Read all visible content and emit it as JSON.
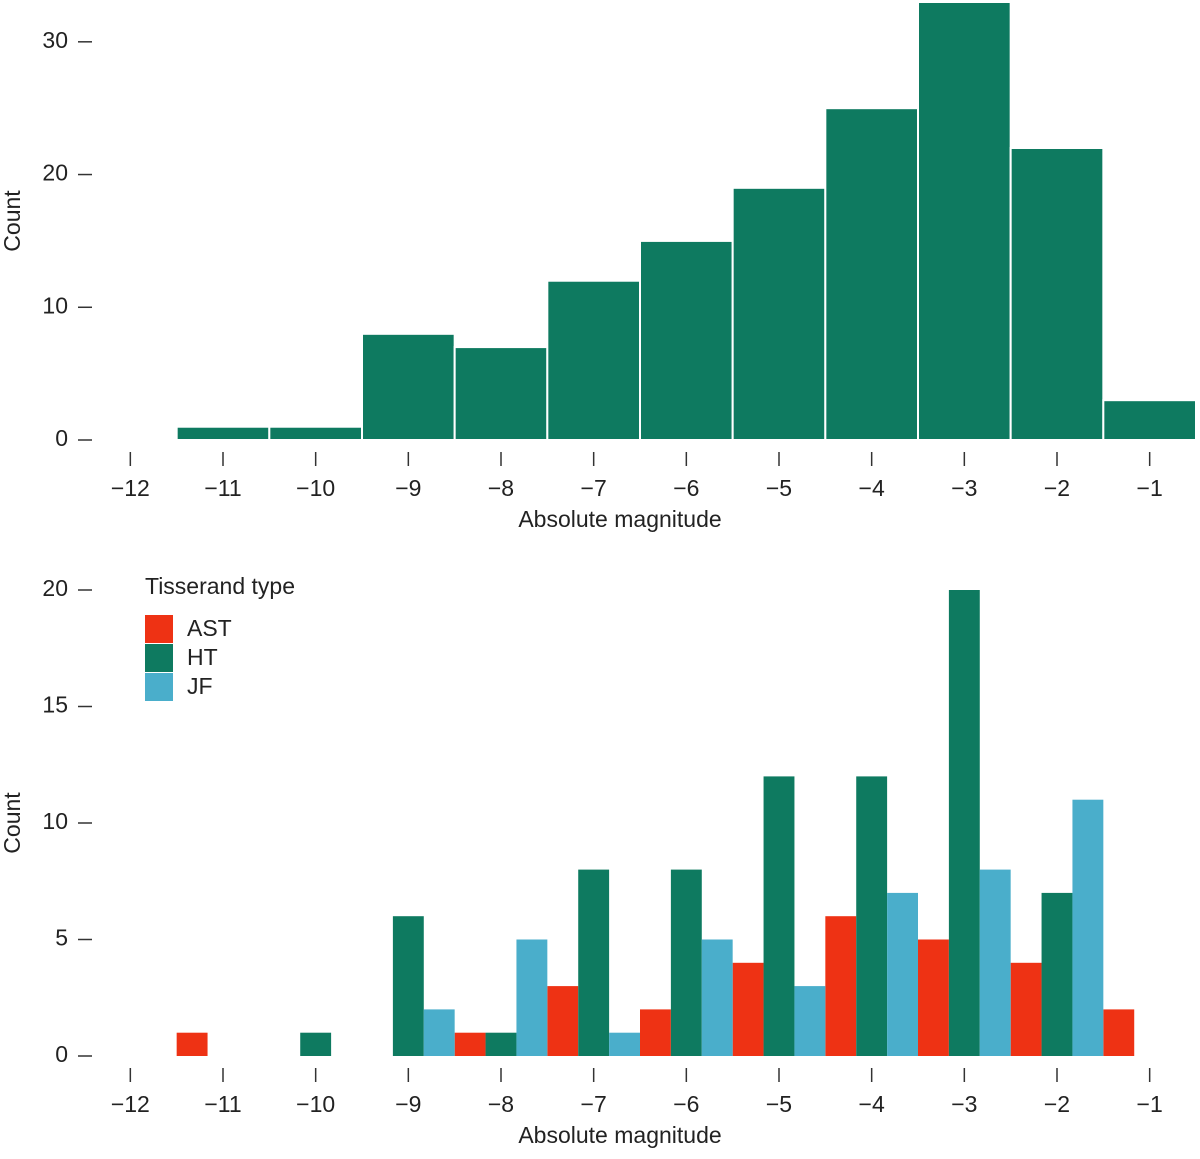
{
  "chart_data": [
    {
      "type": "histogram",
      "x_label": "Absolute magnitude",
      "y_label": "Count",
      "bins": [
        -11.5,
        -10.5,
        -9.5,
        -8.5,
        -7.5,
        -6.5,
        -5.5,
        -4.5,
        -3.5,
        -2.5,
        -1.5,
        -0.5
      ],
      "values": [
        1,
        1,
        8,
        7,
        12,
        15,
        19,
        25,
        33,
        22,
        3
      ],
      "color": "#0e7a60",
      "xlim": [
        -12.5,
        -0.5
      ],
      "ylim": [
        0,
        33
      ],
      "xticks": [
        {
          "value": -12,
          "label": "−12"
        },
        {
          "value": -11,
          "label": "−11"
        },
        {
          "value": -10,
          "label": "−10"
        },
        {
          "value": -9,
          "label": "−9"
        },
        {
          "value": -8,
          "label": "−8"
        },
        {
          "value": -7,
          "label": "−7"
        },
        {
          "value": -6,
          "label": "−6"
        },
        {
          "value": -5,
          "label": "−5"
        },
        {
          "value": -4,
          "label": "−4"
        },
        {
          "value": -3,
          "label": "−3"
        },
        {
          "value": -2,
          "label": "−2"
        },
        {
          "value": -1,
          "label": "−1"
        }
      ],
      "yticks": [
        0,
        10,
        20,
        30
      ]
    },
    {
      "type": "grouped_histogram",
      "x_label": "Absolute magnitude",
      "y_label": "Count",
      "legend_title": "Tisserand type",
      "bins": [
        -11.5,
        -10.5,
        -9.5,
        -8.5,
        -7.5,
        -6.5,
        -5.5,
        -4.5,
        -3.5,
        -2.5,
        -1.5,
        -0.5
      ],
      "series": [
        {
          "name": "AST",
          "color": "#ee3214",
          "values": [
            1,
            0,
            0,
            1,
            3,
            2,
            4,
            6,
            5,
            4,
            2
          ]
        },
        {
          "name": "HT",
          "color": "#0e7a60",
          "values": [
            0,
            1,
            6,
            1,
            8,
            8,
            12,
            12,
            20,
            7,
            0
          ]
        },
        {
          "name": "JF",
          "color": "#4aaecb",
          "values": [
            0,
            0,
            2,
            5,
            1,
            5,
            3,
            7,
            8,
            11,
            0
          ]
        }
      ],
      "xlim": [
        -12.5,
        -0.5
      ],
      "ylim": [
        0,
        20
      ],
      "xticks": [
        {
          "value": -12,
          "label": "−12"
        },
        {
          "value": -11,
          "label": "−11"
        },
        {
          "value": -10,
          "label": "−10"
        },
        {
          "value": -9,
          "label": "−9"
        },
        {
          "value": -8,
          "label": "−8"
        },
        {
          "value": -7,
          "label": "−7"
        },
        {
          "value": -6,
          "label": "−6"
        },
        {
          "value": -5,
          "label": "−5"
        },
        {
          "value": -4,
          "label": "−4"
        },
        {
          "value": -3,
          "label": "−3"
        },
        {
          "value": -2,
          "label": "−2"
        },
        {
          "value": -1,
          "label": "−1"
        }
      ],
      "yticks": [
        0,
        5,
        10,
        15,
        20
      ]
    }
  ]
}
